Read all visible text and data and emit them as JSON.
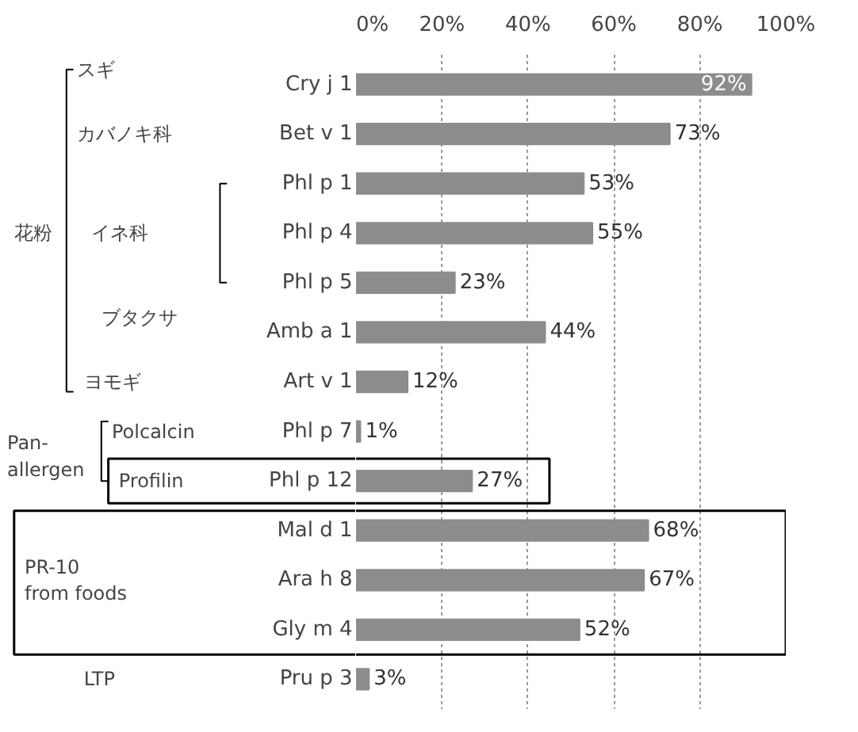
{
  "chart_data": {
    "type": "bar",
    "orientation": "horizontal",
    "categories": [
      "Cry j 1",
      "Bet v 1",
      "Phl p 1",
      "Phl p 4",
      "Phl p 5",
      "Amb a 1",
      "Art v 1",
      "Phl p 7",
      "Phl p 12",
      "Mal d 1",
      "Ara h 8",
      "Gly m 4",
      "Pru p 3"
    ],
    "values": [
      92,
      73,
      53,
      55,
      23,
      44,
      12,
      1,
      27,
      68,
      67,
      52,
      3
    ],
    "value_labels": [
      "92%",
      "73%",
      "53%",
      "55%",
      "23%",
      "44%",
      "12%",
      "1%",
      "27%",
      "68%",
      "67%",
      "52%",
      "3%"
    ],
    "color": "#8c8c8c",
    "xlim": [
      0,
      100
    ],
    "xticks": [
      {
        "value": 0,
        "label": "0%"
      },
      {
        "value": 20,
        "label": "20%"
      },
      {
        "value": 40,
        "label": "40%"
      },
      {
        "value": 60,
        "label": "60%"
      },
      {
        "value": 80,
        "label": "80%"
      },
      {
        "value": 100,
        "label": "100%"
      }
    ],
    "grid": "x",
    "annotations": [
      "スギ",
      "カバノキ科",
      "イネ科",
      "ブタクサ",
      "ヨモギ",
      "花粉",
      "Pan-\nallergen",
      "Polcalcin",
      "Profilin",
      "PR-10\nfrom foods",
      "LTP"
    ]
  }
}
